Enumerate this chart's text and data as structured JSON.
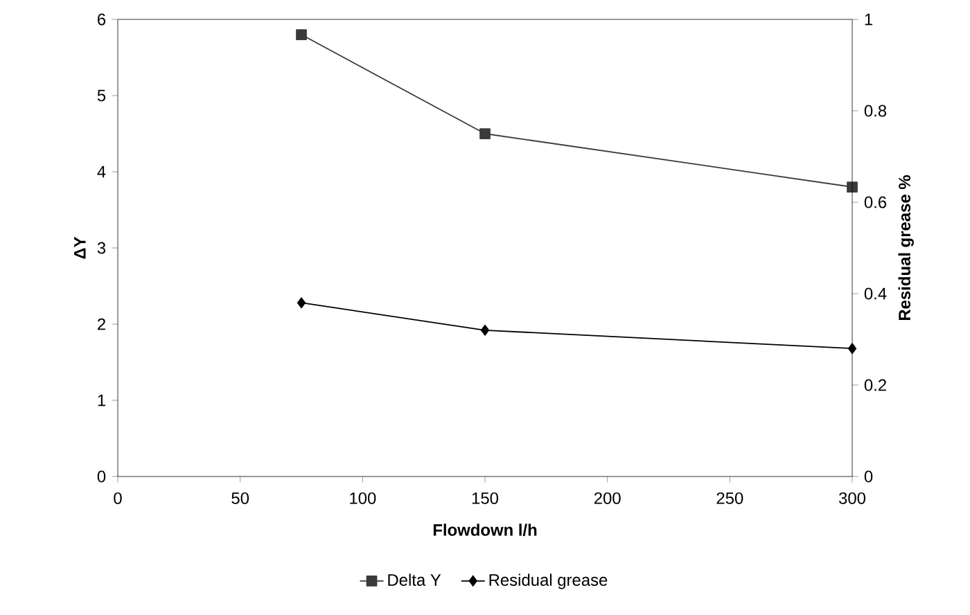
{
  "chart_data": {
    "type": "line",
    "xlabel": "Flowdown l/h",
    "ylabel": "ΔY",
    "y2label": "Residual grease %",
    "x": [
      75,
      150,
      300
    ],
    "series": [
      {
        "name": "Delta Y",
        "color": "#3a3a3a",
        "values": [
          5.8,
          4.5,
          3.8
        ],
        "marker": "square"
      },
      {
        "name": "Residual grease",
        "color": "#000000",
        "values": [
          0.38,
          0.32,
          0.28
        ],
        "marker": "diamond",
        "axis": "y2"
      }
    ],
    "xlim": [
      0,
      300
    ],
    "xticks": [
      0,
      50,
      100,
      150,
      200,
      250,
      300
    ],
    "ylim": [
      0,
      6
    ],
    "yticks": [
      0,
      1,
      2,
      3,
      4,
      5,
      6
    ],
    "y2lim": [
      0,
      1
    ],
    "y2ticks": [
      0,
      0.2,
      0.4,
      0.6,
      0.8,
      1
    ],
    "grid": false,
    "legend": "bottom",
    "line_style": "solid"
  }
}
